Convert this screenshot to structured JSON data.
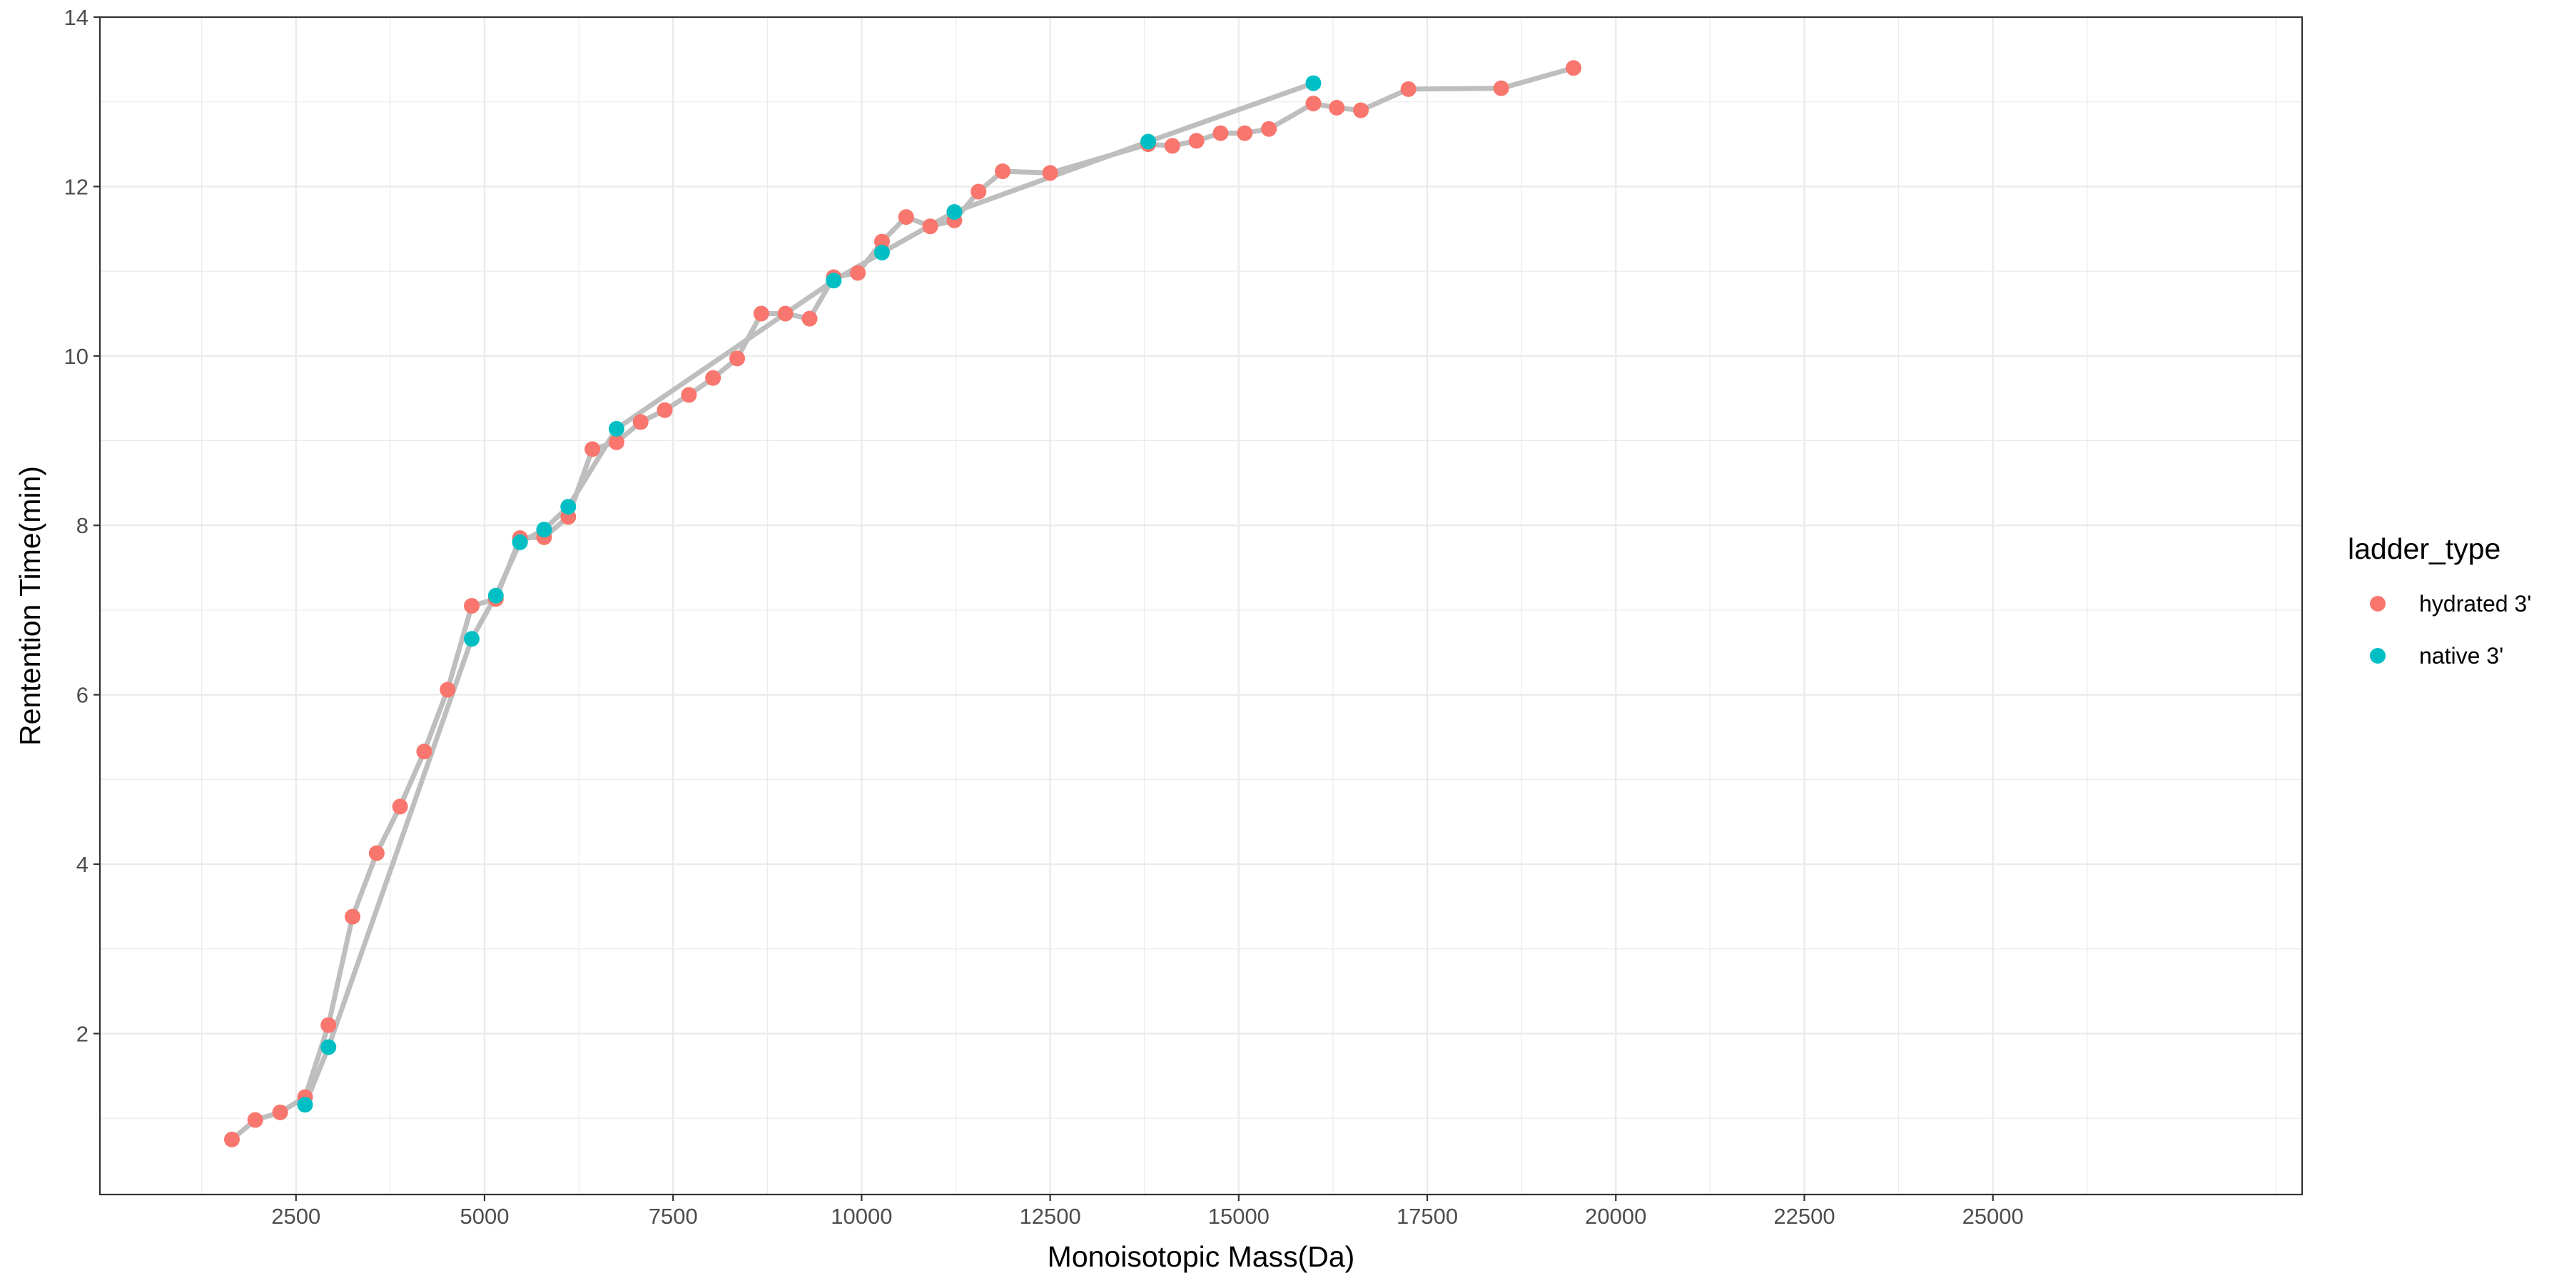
{
  "chart_data": {
    "type": "scatter",
    "title": "",
    "xlabel": "Monoisotopic Mass(Da)",
    "ylabel": "Rentention Time(min)",
    "xlim": [
      -100,
      29100
    ],
    "ylim": [
      0.1,
      14.0
    ],
    "x_ticks": [
      2500,
      5000,
      7500,
      10000,
      12500,
      15000,
      17500,
      20000,
      22500,
      25000
    ],
    "y_ticks": [
      2,
      4,
      6,
      8,
      10,
      12,
      14
    ],
    "grid": true,
    "legend": {
      "title": "ladder_type",
      "position": "right"
    },
    "line_color": "#bebebe",
    "series": [
      {
        "name": "hydrated 3'",
        "color": "#F8766D",
        "points": [
          [
            1650,
            0.75
          ],
          [
            1960,
            0.98
          ],
          [
            2290,
            1.07
          ],
          [
            2620,
            1.25
          ],
          [
            2930,
            2.1
          ],
          [
            3250,
            3.38
          ],
          [
            3570,
            4.13
          ],
          [
            3880,
            4.68
          ],
          [
            4200,
            5.33
          ],
          [
            4510,
            6.06
          ],
          [
            4830,
            7.05
          ],
          [
            5150,
            7.13
          ],
          [
            5470,
            7.85
          ],
          [
            5790,
            7.86
          ],
          [
            6110,
            8.1
          ],
          [
            6430,
            8.9
          ],
          [
            6750,
            8.98
          ],
          [
            7070,
            9.22
          ],
          [
            7390,
            9.36
          ],
          [
            7710,
            9.54
          ],
          [
            8030,
            9.74
          ],
          [
            8350,
            9.97
          ],
          [
            8670,
            10.5
          ],
          [
            8990,
            10.5
          ],
          [
            9310,
            10.44
          ],
          [
            9630,
            10.93
          ],
          [
            9950,
            10.98
          ],
          [
            10270,
            11.35
          ],
          [
            10590,
            11.64
          ],
          [
            10910,
            11.53
          ],
          [
            11230,
            11.6
          ],
          [
            11550,
            11.94
          ],
          [
            11870,
            12.18
          ],
          [
            12500,
            12.16
          ],
          [
            13800,
            12.5
          ],
          [
            14120,
            12.48
          ],
          [
            14440,
            12.54
          ],
          [
            14760,
            12.63
          ],
          [
            15080,
            12.63
          ],
          [
            15400,
            12.68
          ],
          [
            15990,
            12.98
          ],
          [
            16300,
            12.93
          ],
          [
            16620,
            12.9
          ],
          [
            17250,
            13.15
          ],
          [
            18480,
            13.16
          ],
          [
            19440,
            13.4
          ]
        ]
      },
      {
        "name": "native 3'",
        "color": "#00BFC4",
        "points": [
          [
            2620,
            1.16
          ],
          [
            2930,
            1.84
          ],
          [
            4830,
            6.66
          ],
          [
            5150,
            7.17
          ],
          [
            5470,
            7.8
          ],
          [
            5790,
            7.95
          ],
          [
            6110,
            8.22
          ],
          [
            6750,
            9.14
          ],
          [
            9630,
            10.89
          ],
          [
            10270,
            11.22
          ],
          [
            11230,
            11.7
          ],
          [
            13800,
            12.53
          ],
          [
            15990,
            13.22
          ]
        ]
      }
    ]
  }
}
